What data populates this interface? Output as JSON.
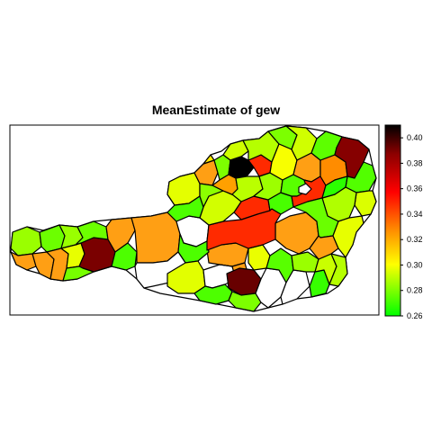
{
  "title": "MeanEstimate of gew",
  "colors": {
    "palette": [
      "#00ff00",
      "#ffff00",
      "#ff8c00",
      "#ff0000",
      "#8b0000",
      "#000000"
    ],
    "border": "#000000",
    "missing": "#ffffff"
  },
  "chart_data": {
    "type": "heatmap",
    "subtype": "choropleth",
    "title": "MeanEstimate of gew",
    "legend": {
      "placement": "right",
      "range": [
        0.26,
        0.41
      ],
      "ticks": [
        "0.40",
        "0.38",
        "0.36",
        "0.34",
        "0.32",
        "0.30",
        "0.28",
        "0.26"
      ]
    },
    "regions": [
      {
        "value": 0.41
      },
      {
        "value": 0.39
      },
      {
        "value": 0.36
      },
      {
        "value": 0.38
      },
      {
        "value": 0.39
      },
      {
        "value": 0.39
      },
      {
        "value": 0.36
      },
      {
        "value": 0.32
      },
      {
        "value": 0.32
      },
      {
        "value": 0.27
      },
      {
        "value": 0.28
      },
      {
        "value": 0.3
      },
      {
        "value": 0.32
      },
      {
        "value": 0.27
      },
      {
        "value": 0.28
      },
      {
        "value": 0.3
      }
    ]
  }
}
